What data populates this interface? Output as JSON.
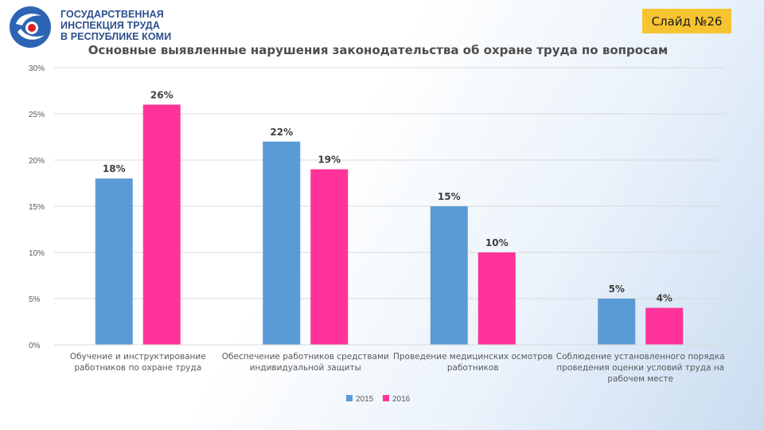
{
  "logo": {
    "lines": [
      "ГОСУДАРСТВЕННАЯ",
      "ИНСПЕКЦИЯ ТРУДА",
      "В РЕСПУБЛИКЕ КОМИ"
    ],
    "colors": {
      "text": "#2d4f8e",
      "swirl_blue": "#2d64b4",
      "swirl_red": "#d8222a"
    }
  },
  "slide_badge": {
    "label": "Слайд №26",
    "color": "#f7c431"
  },
  "chart_data": {
    "type": "bar",
    "title": "Основные выявленные нарушения законодательства об охране труда по вопросам",
    "xlabel": "",
    "ylabel": "",
    "ylim": [
      0,
      30
    ],
    "yticks": [
      0,
      5,
      10,
      15,
      20,
      25,
      30
    ],
    "ytick_labels": [
      "0%",
      "5%",
      "10%",
      "15%",
      "20%",
      "25%",
      "30%"
    ],
    "grid": true,
    "legend": "bottom-center",
    "categories": [
      [
        "Обучение и инструктирование",
        "работников по охране труда"
      ],
      [
        "Обеспечение работников средствами",
        "индивидуальной защиты"
      ],
      [
        "Проведение медицинских осмотров",
        "работников"
      ],
      [
        "Соблюдение установленного порядка",
        "проведения оценки условий труда на",
        "рабочем месте"
      ]
    ],
    "series": [
      {
        "name": "2015",
        "color": "#5b9bd5",
        "values": [
          18,
          22,
          15,
          5
        ],
        "labels": [
          "18%",
          "22%",
          "15%",
          "5%"
        ]
      },
      {
        "name": "2016",
        "color": "#ff3399",
        "values": [
          26,
          19,
          10,
          4
        ],
        "labels": [
          "26%",
          "19%",
          "10%",
          "4%"
        ]
      }
    ]
  }
}
